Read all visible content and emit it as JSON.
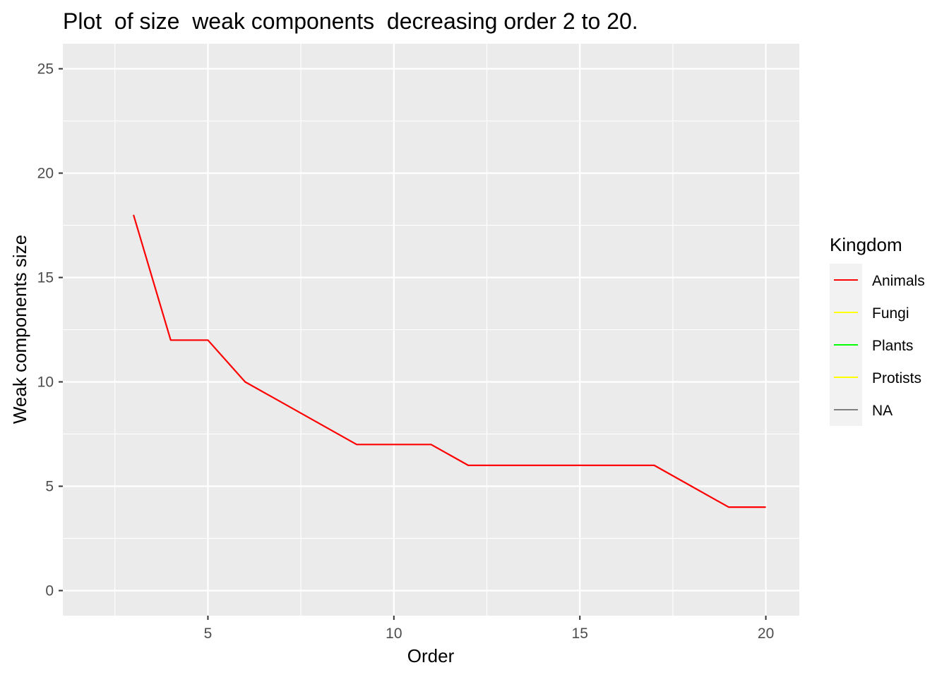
{
  "chart_data": {
    "type": "line",
    "title": "Plot  of size  weak components  decreasing order 2 to 20.",
    "xlabel": "Order",
    "ylabel": "Weak components size",
    "xlim": [
      1.1,
      20.9
    ],
    "ylim": [
      -1.2,
      26.2
    ],
    "x_ticks": [
      5,
      10,
      15,
      20
    ],
    "y_ticks": [
      0,
      5,
      10,
      15,
      20,
      25
    ],
    "grid": true,
    "legend": {
      "title": "Kingdom",
      "position": "right",
      "entries": [
        {
          "label": "Animals",
          "color": "#ff0000"
        },
        {
          "label": "Fungi",
          "color": "#ffff00"
        },
        {
          "label": "Plants",
          "color": "#00ff00"
        },
        {
          "label": "Protists",
          "color": "#ffff00"
        },
        {
          "label": "NA",
          "color": "#808080"
        }
      ]
    },
    "series": [
      {
        "name": "Animals",
        "color": "#ff0000",
        "x": [
          3,
          4,
          5,
          6,
          7,
          8,
          9,
          10,
          11,
          12,
          13,
          14,
          15,
          16,
          17,
          18,
          19,
          20
        ],
        "y": [
          18,
          12,
          12,
          10,
          9,
          8,
          7,
          7,
          7,
          6,
          6,
          6,
          6,
          6,
          6,
          5,
          4,
          4
        ]
      }
    ]
  }
}
